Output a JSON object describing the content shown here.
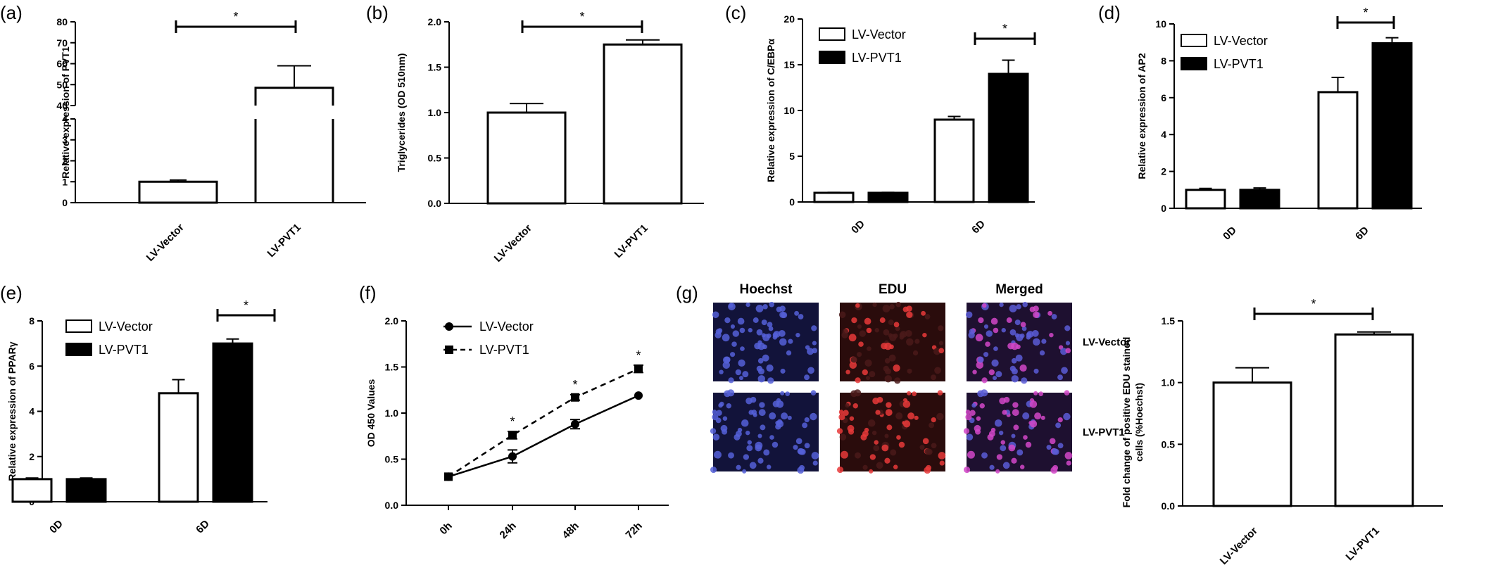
{
  "colors": {
    "vector": "#ffffff",
    "pvt1": "#000000",
    "axis": "#000000"
  },
  "chart_data": [
    {
      "id": "a",
      "panel_label": "(a)",
      "type": "bar",
      "ylabel": "Relative expression of PVT1",
      "categories": [
        "LV-Vector",
        "LV-PVT1"
      ],
      "values": [
        1.0,
        48.5
      ],
      "errors": [
        0.08,
        10.5
      ],
      "broken_axis": {
        "lower_range": [
          0,
          4
        ],
        "upper_range": [
          40,
          80
        ]
      },
      "lower_ticks": [
        "0",
        "1",
        "2",
        "3",
        "4"
      ],
      "upper_ticks": [
        "40",
        "50",
        "60",
        "70",
        "80"
      ],
      "significance": "*"
    },
    {
      "id": "b",
      "panel_label": "(b)",
      "type": "bar",
      "ylabel": "Triglycerides (OD 510nm)",
      "categories": [
        "LV-Vector",
        "LV-PVT1"
      ],
      "values": [
        1.0,
        1.75
      ],
      "errors": [
        0.1,
        0.05
      ],
      "ylim": [
        0,
        2.0
      ],
      "yticks": [
        "0.0",
        "0.5",
        "1.0",
        "1.5",
        "2.0"
      ],
      "significance": "*"
    },
    {
      "id": "c",
      "panel_label": "(c)",
      "type": "bar",
      "ylabel": "Relative expression of C/EBPα",
      "categories": [
        "0D",
        "6D"
      ],
      "series": [
        {
          "name": "LV-Vector",
          "values": [
            1.0,
            9.0
          ],
          "errors": [
            0.05,
            0.35
          ]
        },
        {
          "name": "LV-PVT1",
          "values": [
            1.0,
            14.0
          ],
          "errors": [
            0.05,
            1.5
          ]
        }
      ],
      "ylim": [
        0,
        20
      ],
      "yticks": [
        "0",
        "5",
        "10",
        "15",
        "20"
      ],
      "significance": "*",
      "legend": "top-left"
    },
    {
      "id": "d",
      "panel_label": "(d)",
      "type": "bar",
      "ylabel": "Relative expression of AP2",
      "categories": [
        "0D",
        "6D"
      ],
      "series": [
        {
          "name": "LV-Vector",
          "values": [
            1.0,
            6.3
          ],
          "errors": [
            0.08,
            0.8
          ]
        },
        {
          "name": "LV-PVT1",
          "values": [
            1.0,
            8.95
          ],
          "errors": [
            0.1,
            0.3
          ]
        }
      ],
      "ylim": [
        0,
        10
      ],
      "yticks": [
        "0",
        "2",
        "4",
        "6",
        "8",
        "10"
      ],
      "significance": "*",
      "legend": "top-left"
    },
    {
      "id": "e",
      "panel_label": "(e)",
      "type": "bar",
      "ylabel": "Relative expression of PPARγ",
      "categories": [
        "0D",
        "6D"
      ],
      "series": [
        {
          "name": "LV-Vector",
          "values": [
            1.0,
            4.8
          ],
          "errors": [
            0.05,
            0.6
          ]
        },
        {
          "name": "LV-PVT1",
          "values": [
            1.0,
            7.0
          ],
          "errors": [
            0.05,
            0.2
          ]
        }
      ],
      "ylim": [
        0,
        8
      ],
      "yticks": [
        "0",
        "2",
        "4",
        "6",
        "8"
      ],
      "significance": "*",
      "legend": "top-left"
    },
    {
      "id": "f",
      "panel_label": "(f)",
      "type": "line",
      "ylabel": "OD 450 Values",
      "categories": [
        "0h",
        "24h",
        "48h",
        "72h"
      ],
      "series": [
        {
          "name": "LV-Vector",
          "values": [
            0.31,
            0.53,
            0.88,
            1.19
          ],
          "errors": [
            0.02,
            0.07,
            0.05,
            0.02
          ],
          "marker": "circle",
          "dash": "solid"
        },
        {
          "name": "LV-PVT1",
          "values": [
            0.31,
            0.76,
            1.17,
            1.48
          ],
          "errors": [
            0.02,
            0.04,
            0.03,
            0.04
          ],
          "marker": "square",
          "dash": "dashed"
        }
      ],
      "ylim": [
        0,
        2.0
      ],
      "yticks": [
        "0.0",
        "0.5",
        "1.0",
        "1.5",
        "2.0"
      ],
      "significance_marks": [
        "",
        "*",
        "*",
        "*"
      ],
      "legend": "top-left"
    },
    {
      "id": "g",
      "type": "bar",
      "ylabel_lines": [
        "Fold change of positive EDU stained",
        "cells (%Hoechst)"
      ],
      "categories": [
        "LV-Vector",
        "LV-PVT1"
      ],
      "values": [
        1.0,
        1.39
      ],
      "errors": [
        0.12,
        0.02
      ],
      "ylim": [
        0,
        1.5
      ],
      "yticks": [
        "0.0",
        "0.5",
        "1.0",
        "1.5"
      ],
      "significance": "*"
    }
  ],
  "micrographs": {
    "panel_label": "(g)",
    "columns": [
      "Hoechst",
      "EDU",
      "Merged"
    ],
    "rows": [
      "LV-Vector",
      "LV-PVT1"
    ]
  }
}
